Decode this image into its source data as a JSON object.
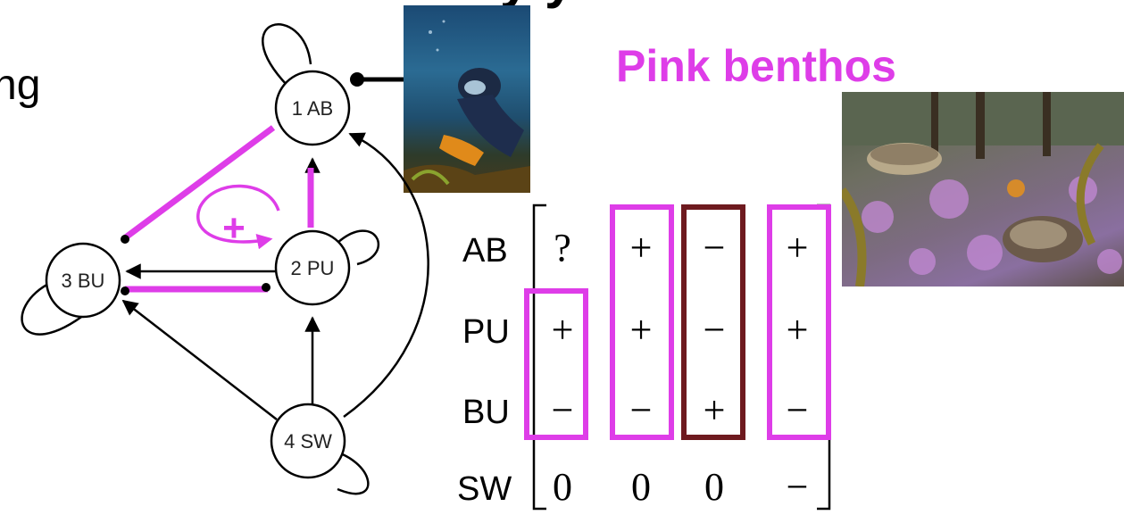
{
  "top_text_fragment": "y y",
  "left_text_fragment": "ng",
  "pink_title": "Pink benthos",
  "colors": {
    "magenta": "#de3de8",
    "dark_red": "#6e1a1f",
    "black": "#000000"
  },
  "graph": {
    "nodes": [
      {
        "id": "AB",
        "label": "1 AB"
      },
      {
        "id": "PU",
        "label": "2 PU"
      },
      {
        "id": "BU",
        "label": "3 BU"
      },
      {
        "id": "SW",
        "label": "4 SW"
      }
    ],
    "feedback_symbol": "+"
  },
  "matrix": {
    "row_labels": [
      "AB",
      "PU",
      "BU",
      "SW"
    ],
    "columns": [
      {
        "values": [
          "?",
          "+",
          "−",
          "0"
        ],
        "box_color": "magenta"
      },
      {
        "values": [
          "+",
          "+",
          "−",
          "0"
        ],
        "box_color": "magenta"
      },
      {
        "values": [
          "−",
          "−",
          "+",
          "0"
        ],
        "box_color": "dark_red"
      },
      {
        "values": [
          "+",
          "+",
          "−",
          "−"
        ],
        "box_color": "magenta"
      }
    ]
  },
  "photos": [
    {
      "name": "diver-photo",
      "subject": "scuba diver underwater"
    },
    {
      "name": "pink-benthos-photo",
      "subject": "pink encrusted seabed with abalone and kelp"
    }
  ]
}
